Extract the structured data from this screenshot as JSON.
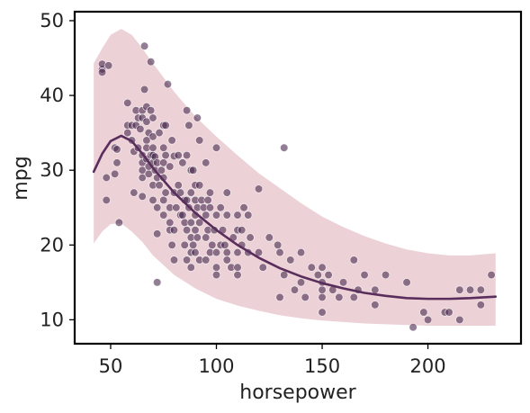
{
  "chart_data": {
    "type": "scatter",
    "title": "",
    "xlabel": "horsepower",
    "ylabel": "mpg",
    "xlim": [
      33,
      244
    ],
    "ylim": [
      6.8,
      51.2
    ],
    "xticks": [
      "50",
      "100",
      "150",
      "200"
    ],
    "yticks": [
      "10",
      "20",
      "30",
      "40",
      "50"
    ],
    "grid": false,
    "legend": "none",
    "colors": {
      "points": "#4a2a4f",
      "fit_line": "#5a2e5c",
      "band": "#d9a5ad",
      "frame": "#000000"
    },
    "band_opacity": 0.5,
    "points": [
      [
        46,
        43.5
      ],
      [
        46,
        44.2
      ],
      [
        46,
        43.1
      ],
      [
        48,
        26
      ],
      [
        48,
        29
      ],
      [
        49,
        44
      ],
      [
        52,
        29.5
      ],
      [
        52,
        33
      ],
      [
        53,
        32.8
      ],
      [
        53,
        31
      ],
      [
        54,
        23
      ],
      [
        58,
        39
      ],
      [
        58,
        36
      ],
      [
        58,
        35
      ],
      [
        60,
        36
      ],
      [
        60,
        34
      ],
      [
        61,
        32.5
      ],
      [
        61,
        27
      ],
      [
        62,
        38
      ],
      [
        62,
        36
      ],
      [
        63,
        33
      ],
      [
        63,
        37
      ],
      [
        64,
        35.5
      ],
      [
        65,
        38
      ],
      [
        65,
        37
      ],
      [
        65,
        32
      ],
      [
        65,
        31
      ],
      [
        65,
        30
      ],
      [
        65,
        29
      ],
      [
        65,
        26.5
      ],
      [
        66,
        40.8
      ],
      [
        66,
        46.6
      ],
      [
        67,
        38.5
      ],
      [
        67,
        36.5
      ],
      [
        67,
        34
      ],
      [
        67,
        31.5
      ],
      [
        67,
        33
      ],
      [
        68,
        35
      ],
      [
        68,
        30.5
      ],
      [
        68,
        29.5
      ],
      [
        69,
        44.5
      ],
      [
        69,
        32
      ],
      [
        69,
        38
      ],
      [
        70,
        34.5
      ],
      [
        70,
        33
      ],
      [
        70,
        32
      ],
      [
        70,
        31
      ],
      [
        70,
        37
      ],
      [
        70,
        28
      ],
      [
        70,
        26
      ],
      [
        71,
        31.8
      ],
      [
        71,
        30
      ],
      [
        72,
        31
      ],
      [
        72,
        29
      ],
      [
        72,
        25
      ],
      [
        72,
        21.5
      ],
      [
        72,
        15
      ],
      [
        73,
        35
      ],
      [
        73,
        28
      ],
      [
        74,
        30
      ],
      [
        75,
        36
      ],
      [
        75,
        31
      ],
      [
        75,
        33
      ],
      [
        75,
        29
      ],
      [
        75,
        26
      ],
      [
        75,
        24
      ],
      [
        76,
        32
      ],
      [
        76,
        27
      ],
      [
        76,
        36
      ],
      [
        77,
        41.5
      ],
      [
        78,
        30.5
      ],
      [
        78,
        25
      ],
      [
        78,
        23
      ],
      [
        78,
        22
      ],
      [
        79,
        20
      ],
      [
        79,
        34
      ],
      [
        80,
        31.9
      ],
      [
        80,
        27
      ],
      [
        80,
        22
      ],
      [
        80,
        18
      ],
      [
        81,
        25
      ],
      [
        82,
        28
      ],
      [
        82,
        32
      ],
      [
        83,
        27
      ],
      [
        83,
        24
      ],
      [
        84,
        24
      ],
      [
        84,
        31
      ],
      [
        85,
        23
      ],
      [
        85,
        20
      ],
      [
        85,
        26
      ],
      [
        86,
        38
      ],
      [
        86,
        32
      ],
      [
        86,
        26
      ],
      [
        86,
        22
      ],
      [
        86,
        18
      ],
      [
        87,
        25
      ],
      [
        87,
        36
      ],
      [
        88,
        27
      ],
      [
        88,
        30
      ],
      [
        88,
        21
      ],
      [
        88,
        19
      ],
      [
        88,
        17
      ],
      [
        88,
        23
      ],
      [
        89,
        30
      ],
      [
        89,
        20
      ],
      [
        90,
        26
      ],
      [
        90,
        24
      ],
      [
        90,
        19
      ],
      [
        90,
        22
      ],
      [
        90,
        28
      ],
      [
        91,
        37
      ],
      [
        91,
        25
      ],
      [
        91,
        21
      ],
      [
        92,
        34
      ],
      [
        92,
        28
      ],
      [
        92,
        23
      ],
      [
        92,
        18
      ],
      [
        93,
        26
      ],
      [
        94,
        25
      ],
      [
        95,
        24
      ],
      [
        95,
        21
      ],
      [
        95,
        18
      ],
      [
        95,
        31
      ],
      [
        96,
        26
      ],
      [
        96,
        22
      ],
      [
        97,
        27
      ],
      [
        97,
        25
      ],
      [
        97,
        19
      ],
      [
        98,
        20
      ],
      [
        99,
        22
      ],
      [
        100,
        24
      ],
      [
        100,
        19
      ],
      [
        100,
        17
      ],
      [
        100,
        16
      ],
      [
        100,
        33
      ],
      [
        102,
        20
      ],
      [
        102,
        25
      ],
      [
        103,
        22
      ],
      [
        104,
        20
      ],
      [
        105,
        27
      ],
      [
        105,
        24
      ],
      [
        105,
        19
      ],
      [
        105,
        18
      ],
      [
        107,
        17
      ],
      [
        108,
        21
      ],
      [
        110,
        24
      ],
      [
        110,
        22
      ],
      [
        110,
        19
      ],
      [
        110,
        17
      ],
      [
        110,
        16
      ],
      [
        112,
        22
      ],
      [
        112,
        20
      ],
      [
        113,
        25
      ],
      [
        115,
        24
      ],
      [
        115,
        19
      ],
      [
        116,
        21
      ],
      [
        120,
        27.5
      ],
      [
        120,
        19
      ],
      [
        122,
        17
      ],
      [
        125,
        21
      ],
      [
        129,
        20
      ],
      [
        130,
        19
      ],
      [
        130,
        13
      ],
      [
        132,
        33
      ],
      [
        132,
        16
      ],
      [
        135,
        18
      ],
      [
        137,
        14
      ],
      [
        140,
        19
      ],
      [
        140,
        15
      ],
      [
        142,
        13
      ],
      [
        145,
        17
      ],
      [
        148,
        16
      ],
      [
        150,
        17
      ],
      [
        150,
        14
      ],
      [
        150,
        15
      ],
      [
        150,
        13
      ],
      [
        150,
        11
      ],
      [
        153,
        16
      ],
      [
        155,
        14
      ],
      [
        158,
        13
      ],
      [
        160,
        15
      ],
      [
        165,
        18
      ],
      [
        165,
        13
      ],
      [
        167,
        14
      ],
      [
        170,
        16
      ],
      [
        175,
        14
      ],
      [
        175,
        12
      ],
      [
        180,
        16
      ],
      [
        190,
        15
      ],
      [
        193,
        9
      ],
      [
        198,
        11
      ],
      [
        200,
        10
      ],
      [
        208,
        11
      ],
      [
        210,
        11
      ],
      [
        215,
        14
      ],
      [
        215,
        10
      ],
      [
        220,
        14
      ],
      [
        225,
        14
      ],
      [
        225,
        12
      ],
      [
        230,
        16
      ]
    ],
    "fit_line": [
      [
        42,
        29.8
      ],
      [
        46,
        32.2
      ],
      [
        50,
        33.9
      ],
      [
        55,
        34.6
      ],
      [
        60,
        33.9
      ],
      [
        65,
        32.2
      ],
      [
        70,
        30.3
      ],
      [
        80,
        27.0
      ],
      [
        90,
        24.3
      ],
      [
        100,
        22.0
      ],
      [
        110,
        20.0
      ],
      [
        120,
        18.3
      ],
      [
        130,
        16.9
      ],
      [
        140,
        15.8
      ],
      [
        150,
        14.9
      ],
      [
        160,
        14.2
      ],
      [
        170,
        13.6
      ],
      [
        180,
        13.2
      ],
      [
        190,
        12.9
      ],
      [
        200,
        12.8
      ],
      [
        210,
        12.8
      ],
      [
        220,
        12.9
      ],
      [
        232,
        13.1
      ]
    ],
    "band_upper": [
      [
        42,
        44.3
      ],
      [
        46,
        46.3
      ],
      [
        50,
        48.1
      ],
      [
        55,
        48.9
      ],
      [
        60,
        48.1
      ],
      [
        65,
        46.3
      ],
      [
        70,
        44.3
      ],
      [
        80,
        40.5
      ],
      [
        90,
        37.2
      ],
      [
        100,
        34.5
      ],
      [
        110,
        32.0
      ],
      [
        120,
        29.6
      ],
      [
        130,
        27.6
      ],
      [
        140,
        25.6
      ],
      [
        150,
        23.8
      ],
      [
        160,
        22.4
      ],
      [
        170,
        21.2
      ],
      [
        180,
        20.2
      ],
      [
        190,
        19.4
      ],
      [
        200,
        18.9
      ],
      [
        210,
        18.6
      ],
      [
        220,
        18.6
      ],
      [
        232,
        18.9
      ]
    ],
    "band_lower": [
      [
        42,
        20.2
      ],
      [
        46,
        21.8
      ],
      [
        50,
        22.8
      ],
      [
        55,
        22.9
      ],
      [
        60,
        21.8
      ],
      [
        65,
        20.4
      ],
      [
        70,
        18.6
      ],
      [
        80,
        16.0
      ],
      [
        90,
        14.2
      ],
      [
        100,
        12.8
      ],
      [
        110,
        11.9
      ],
      [
        120,
        11.2
      ],
      [
        130,
        10.6
      ],
      [
        140,
        10.2
      ],
      [
        150,
        9.9
      ],
      [
        160,
        9.7
      ],
      [
        170,
        9.5
      ],
      [
        180,
        9.4
      ],
      [
        190,
        9.3
      ],
      [
        200,
        9.2
      ],
      [
        210,
        9.2
      ],
      [
        220,
        9.2
      ],
      [
        232,
        9.2
      ]
    ]
  }
}
